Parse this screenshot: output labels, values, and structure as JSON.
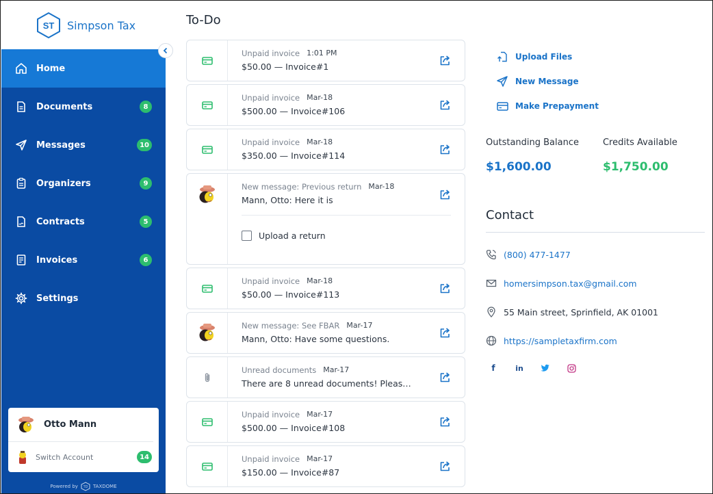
{
  "brand": {
    "initials": "ST",
    "name": "Simpson Tax"
  },
  "nav": [
    {
      "label": "Home",
      "icon": "home-icon",
      "badge": "",
      "active": true
    },
    {
      "label": "Documents",
      "icon": "document-icon",
      "badge": "8"
    },
    {
      "label": "Messages",
      "icon": "send-icon",
      "badge": "10"
    },
    {
      "label": "Organizers",
      "icon": "clipboard-icon",
      "badge": "9"
    },
    {
      "label": "Contracts",
      "icon": "contract-icon",
      "badge": "5"
    },
    {
      "label": "Invoices",
      "icon": "invoice-icon",
      "badge": "6"
    },
    {
      "label": "Settings",
      "icon": "gear-icon",
      "badge": ""
    }
  ],
  "user": {
    "name": "Otto Mann",
    "switch_label": "Switch Account",
    "switch_badge": "14"
  },
  "powered": {
    "text": "Powered by",
    "logo_initials": "TD",
    "logo_name": "TAXDOME"
  },
  "main": {
    "title": "To-Do"
  },
  "todos": [
    {
      "type": "invoice",
      "kind": "Unpaid invoice",
      "date": "1:01 PM",
      "text": "$50.00 — Invoice#1"
    },
    {
      "type": "invoice",
      "kind": "Unpaid invoice",
      "date": "Mar-18",
      "text": "$500.00 — Invoice#106"
    },
    {
      "type": "invoice",
      "kind": "Unpaid invoice",
      "date": "Mar-18",
      "text": "$350.00 — Invoice#114"
    },
    {
      "type": "message",
      "kind": "New message: Previous return",
      "date": "Mar-18",
      "text": "Mann, Otto: Here it is",
      "task": "Upload a return"
    },
    {
      "type": "invoice",
      "kind": "Unpaid invoice",
      "date": "Mar-18",
      "text": "$50.00 — Invoice#113"
    },
    {
      "type": "message",
      "kind": "New message: See FBAR",
      "date": "Mar-17",
      "text": "Mann, Otto: Have some questions."
    },
    {
      "type": "documents",
      "kind": "Unread documents",
      "date": "Mar-17",
      "text": "There are 8 unread documents! Please r…"
    },
    {
      "type": "invoice",
      "kind": "Unpaid invoice",
      "date": "Mar-17",
      "text": "$500.00 — Invoice#108"
    },
    {
      "type": "invoice",
      "kind": "Unpaid invoice",
      "date": "Mar-17",
      "text": "$150.00 — Invoice#87"
    }
  ],
  "actions": [
    {
      "label": "Upload Files",
      "icon": "upload-file-icon"
    },
    {
      "label": "New Message",
      "icon": "send-icon"
    },
    {
      "label": "Make Prepayment",
      "icon": "credit-card-icon"
    }
  ],
  "balances": {
    "outstanding_label": "Outstanding Balance",
    "outstanding_value": "$1,600.00",
    "credits_label": "Credits Available",
    "credits_value": "$1,750.00"
  },
  "contact": {
    "title": "Contact",
    "phone": "(800) 477-1477",
    "email": "homersimpson.tax@gmail.com",
    "address": "55 Main street, Sprinfield, AK 01001",
    "website": "https://sampletaxfirm.com"
  },
  "social": [
    "facebook-icon",
    "linkedin-icon",
    "twitter-icon",
    "instagram-icon"
  ],
  "colors": {
    "sidebar": "#0a4ba3",
    "active": "#1679d6",
    "accent": "#1a73c8",
    "green": "#2dbd6e",
    "outstanding": "#1a73c8",
    "credits": "#2dbd6e"
  }
}
